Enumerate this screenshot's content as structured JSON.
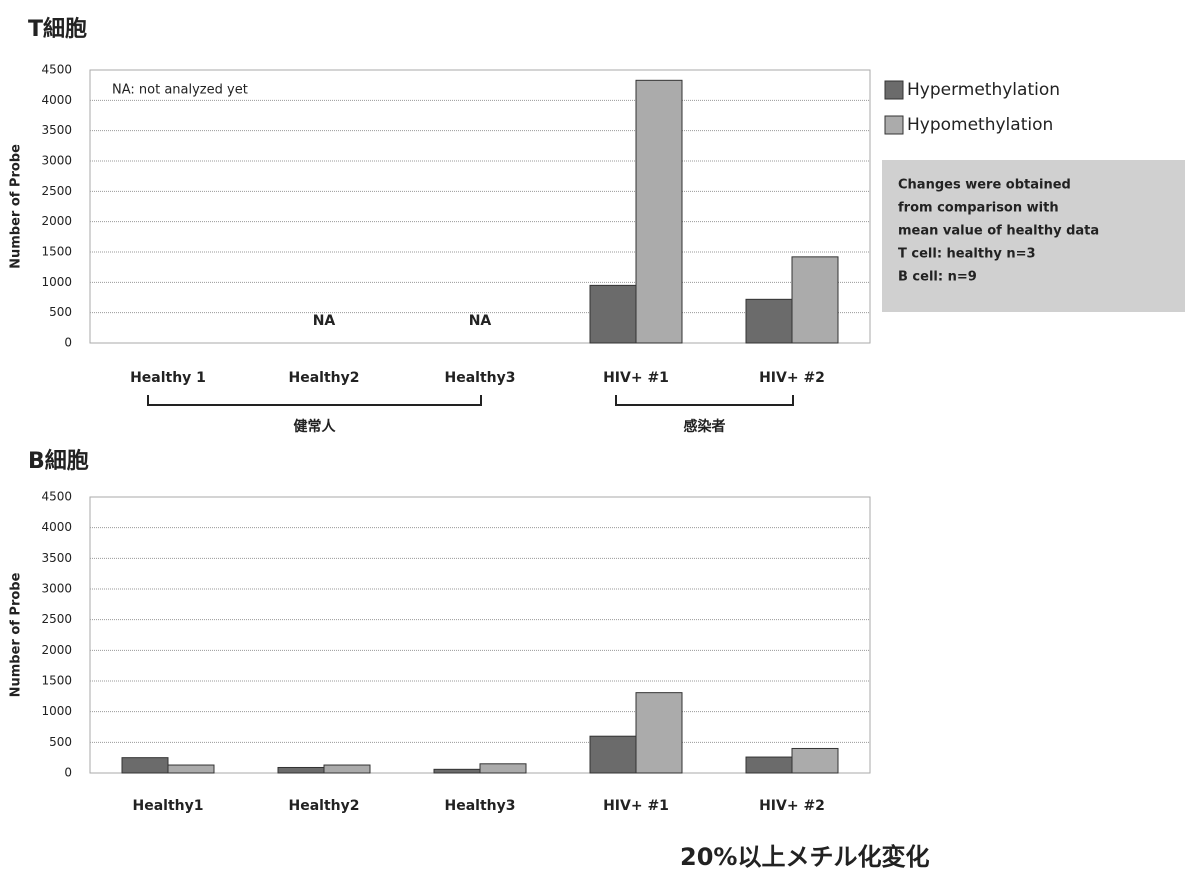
{
  "chart_data": [
    {
      "type": "bar",
      "title": "T細胞",
      "ylabel": "Number of Probe",
      "categories": [
        "Healthy 1",
        "Healthy2",
        "Healthy3",
        "HIV+ #1",
        "HIV+ #2"
      ],
      "series": [
        {
          "name": "Hypermethylation",
          "color": "#6b6b6b",
          "values": [
            0,
            null,
            null,
            950,
            720
          ]
        },
        {
          "name": "Hypomethylation",
          "color": "#ababab",
          "values": [
            0,
            null,
            null,
            4330,
            1420
          ]
        }
      ],
      "ylim": [
        0,
        4500
      ],
      "yticks": [
        0,
        500,
        1000,
        1500,
        2000,
        2500,
        3000,
        3500,
        4000,
        4500
      ],
      "grid": true,
      "note": "NA: not analyzed yet",
      "na_label": "NA",
      "groups": [
        {
          "label": "健常人",
          "from": 0,
          "to": 2
        },
        {
          "label": "感染者",
          "from": 3,
          "to": 4
        }
      ],
      "legend": "right",
      "legend_note": [
        "Changes were obtained",
        "from comparison with",
        "mean value of healthy data",
        "T cell: healthy n=3",
        "B cell: n=9"
      ]
    },
    {
      "type": "bar",
      "title": "B細胞",
      "ylabel": "Number of Probe",
      "categories": [
        "Healthy1",
        "Healthy2",
        "Healthy3",
        "HIV+ #1",
        "HIV+ #2"
      ],
      "series": [
        {
          "name": "Hypermethylation",
          "color": "#6b6b6b",
          "values": [
            250,
            90,
            60,
            600,
            260
          ]
        },
        {
          "name": "Hypomethylation",
          "color": "#ababab",
          "values": [
            130,
            130,
            150,
            1310,
            400
          ]
        }
      ],
      "ylim": [
        0,
        4500
      ],
      "yticks": [
        0,
        500,
        1000,
        1500,
        2000,
        2500,
        3000,
        3500,
        4000,
        4500
      ],
      "grid": true
    }
  ],
  "footnote": "20%以上メチル化変化"
}
